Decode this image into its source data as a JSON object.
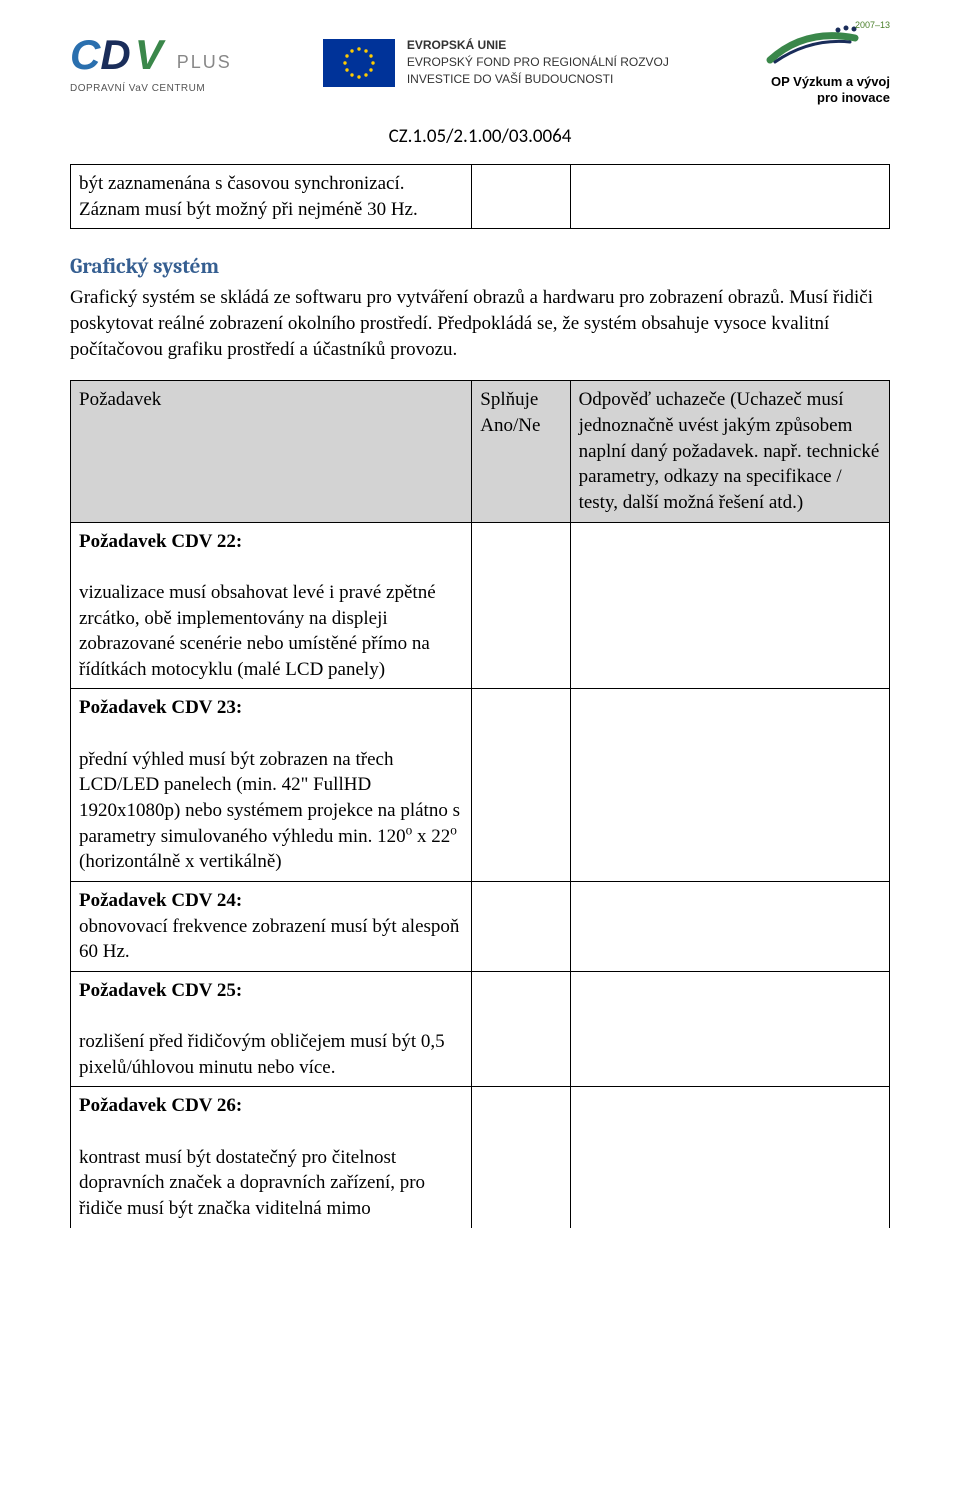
{
  "header": {
    "cdv": {
      "c": "C",
      "d": "D",
      "v": "V",
      "plus": "PLUS",
      "subtitle": "DOPRAVNÍ VaV CENTRUM"
    },
    "eu": {
      "line1": "EVROPSKÁ UNIE",
      "line2": "EVROPSKÝ FOND PRO REGIONÁLNÍ ROZVOJ",
      "line3": "INVESTICE DO VAŠÍ BUDOUCNOSTI"
    },
    "op": {
      "years": "2007–13",
      "line1": "OP Výzkum a vývoj",
      "line2": "pro inovace"
    }
  },
  "doc_id": "CZ.1.05/2.1.00/03.0064",
  "top_table": {
    "cell_text": "být zaznamenána s časovou synchronizací. Záznam musí být možný při nejméně 30 Hz."
  },
  "section": {
    "heading": "Grafický systém",
    "intro": "Grafický systém se skládá ze softwaru pro vytváření obrazů a hardwaru pro zobrazení obrazů. Musí řidiči poskytovat reálné zobrazení okolního prostředí. Předpokládá se, že systém obsahuje vysoce kvalitní počítačovou grafiku prostředí a účastníků provozu."
  },
  "main_table": {
    "header": {
      "col_a": "Požadavek",
      "col_b": "Splňuje Ano/Ne",
      "col_c": "Odpověď uchazeče (Uchazeč musí jednoznačně uvést jakým způsobem naplní daný požadavek.  např. technické parametry, odkazy na specifikace / testy, další možná řešení  atd.)"
    },
    "rows": [
      {
        "title": "Požadavek CDV 22:",
        "body": "vizualizace musí obsahovat levé i pravé zpětné zrcátko, obě implementovány na displeji zobrazované scenérie nebo umístěné přímo na řídítkách motocyklu (malé LCD panely)"
      },
      {
        "title": "Požadavek CDV 23:",
        "body_html": "přední výhled musí být zobrazen na třech LCD/LED panelech (min. 42\" FullHD 1920x1080p) nebo systémem projekce na plátno  s parametry simulovaného výhledu min. 120° x 22° (horizontálně x vertikálně)"
      },
      {
        "title": "Požadavek CDV 24:",
        "body": "obnovovací frekvence zobrazení musí být alespoň 60 Hz."
      },
      {
        "title": "Požadavek CDV 25:",
        "body": "rozlišení před řidičovým obličejem musí být 0,5 pixelů/úhlovou minutu nebo více."
      },
      {
        "title": "Požadavek CDV 26:",
        "body": "kontrast musí být dostatečný pro čitelnost dopravních značek a dopravních zařízení, pro řidiče musí být značka viditelná mimo"
      }
    ]
  }
}
